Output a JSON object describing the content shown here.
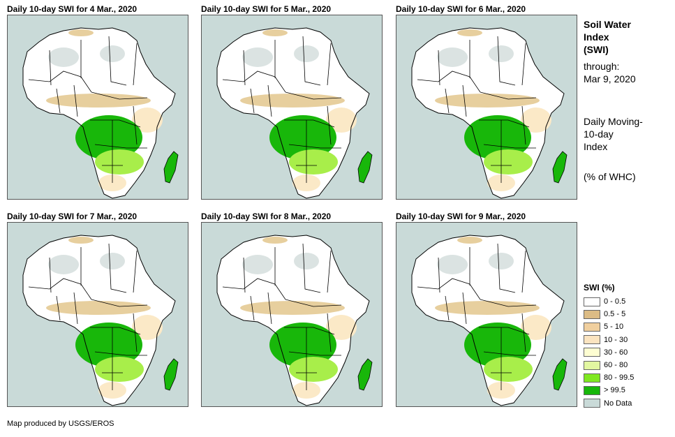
{
  "panels": [
    {
      "title": "Daily 10-day  SWI for 4  Mar., 2020",
      "dominant": "green-high"
    },
    {
      "title": "Daily 10-day  SWI for 5  Mar., 2020",
      "dominant": "green-high"
    },
    {
      "title": "Daily 10-day  SWI for 6  Mar., 2020",
      "dominant": "green-high"
    },
    {
      "title": "Daily 10-day  SWI for 7  Mar., 2020",
      "dominant": "green-high"
    },
    {
      "title": "Daily 10-day  SWI for 8  Mar., 2020",
      "dominant": "green-high"
    },
    {
      "title": "Daily 10-day  SWI for 9  Mar., 2020",
      "dominant": "green-high"
    }
  ],
  "sidebar": {
    "title_line1": "Soil Water",
    "title_line2": "Index",
    "title_line3": "(SWI)",
    "through_line1": "through:",
    "through_line2": "Mar 9, 2020",
    "desc_line1": "Daily Moving-",
    "desc_line2": "10-day",
    "desc_line3": "Index",
    "unit": "(% of WHC)"
  },
  "legend": {
    "title": "SWI (%)",
    "items": [
      {
        "label": "0 - 0.5",
        "color": "#ffffff"
      },
      {
        "label": "0.5 - 5",
        "color": "#dcbc85"
      },
      {
        "label": "5 - 10",
        "color": "#f0cf9e"
      },
      {
        "label": "10 - 30",
        "color": "#fbe4c0"
      },
      {
        "label": "30 - 60",
        "color": "#fefed2"
      },
      {
        "label": "60 - 80",
        "color": "#e2f7a1"
      },
      {
        "label": "80 - 99.5",
        "color": "#7fe821"
      },
      {
        "label": "> 99.5",
        "color": "#18b70a"
      },
      {
        "label": "No Data",
        "color": "#c9dad8"
      }
    ]
  },
  "colors": {
    "ocean": "#c9dad8",
    "land": "#ffffff",
    "desert_gray": "#dbe3e2",
    "tan": "#e7cf9e",
    "cream": "#fbe9c7",
    "pale": "#fefed2",
    "light_green": "#a8ee4a",
    "green": "#18b70a",
    "border": "#000000"
  },
  "credit": "Map produced by USGS/EROS"
}
